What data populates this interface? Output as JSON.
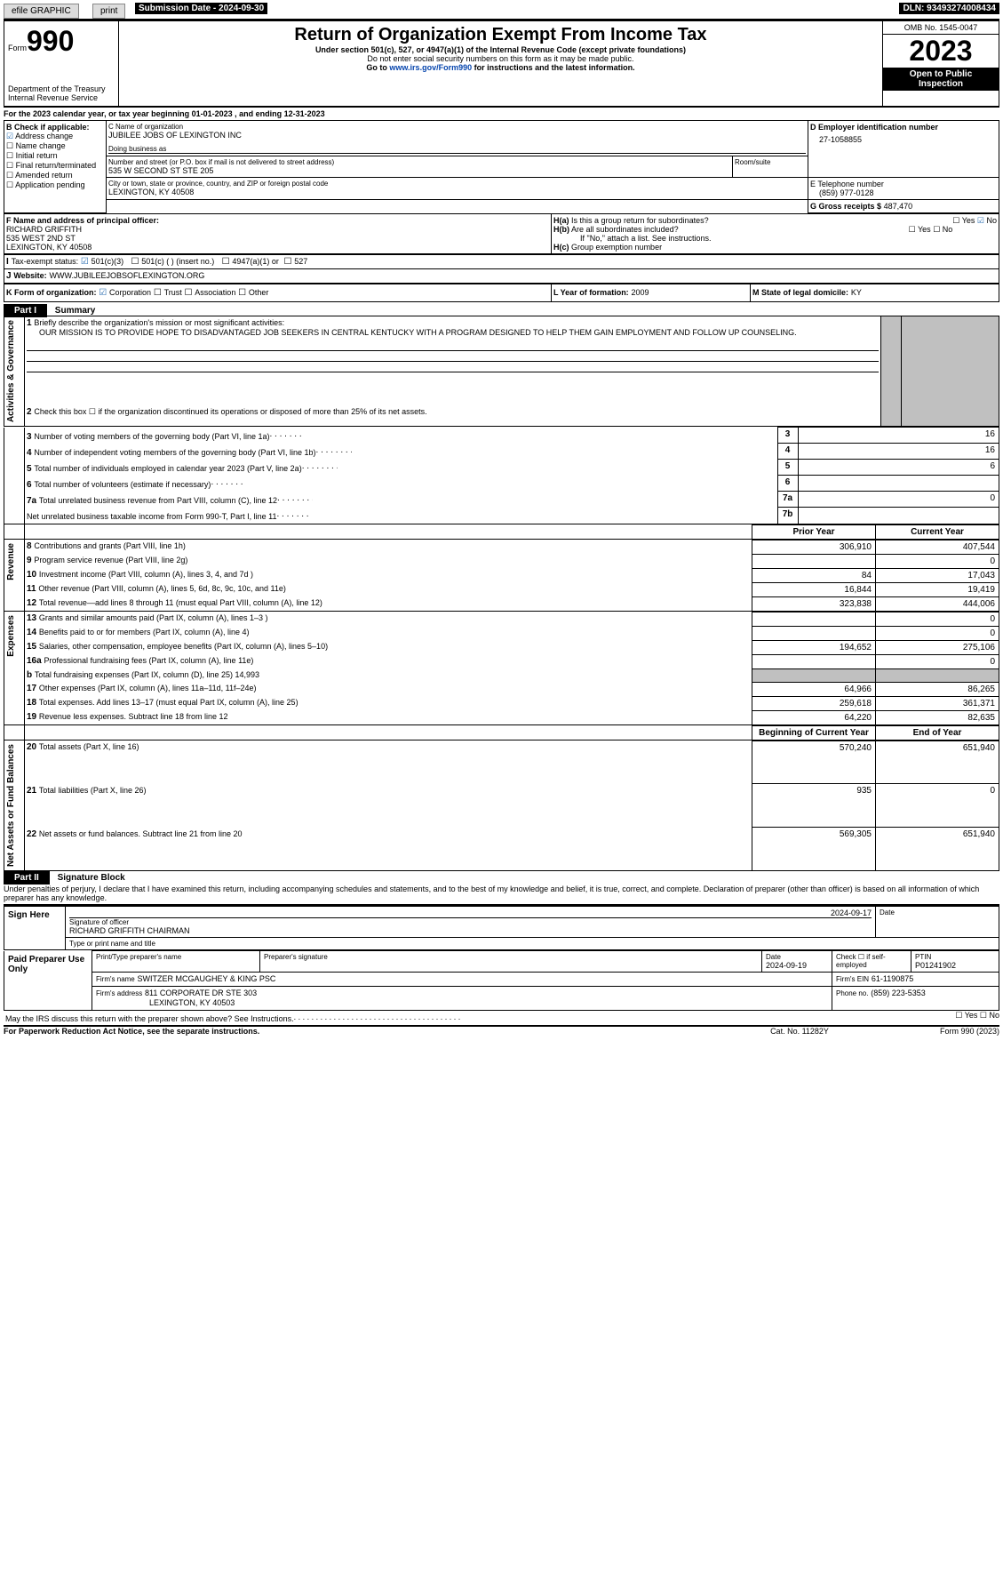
{
  "topbar": {
    "efile": "efile GRAPHIC",
    "print": "print",
    "submission": "Submission Date - 2024-09-30",
    "dln": "DLN: 93493274008434"
  },
  "header": {
    "form_small": "Form",
    "form_big": "990",
    "title": "Return of Organization Exempt From Income Tax",
    "subtitle": "Under section 501(c), 527, or 4947(a)(1) of the Internal Revenue Code (except private foundations)",
    "warn": "Do not enter social security numbers on this form as it may be made public.",
    "goto_pre": "Go to ",
    "goto_link": "www.irs.gov/Form990",
    "goto_post": " for instructions and the latest information.",
    "dept": "Department of the Treasury\nInternal Revenue Service",
    "omb": "OMB No. 1545-0047",
    "year": "2023",
    "open": "Open to Public Inspection"
  },
  "A": {
    "line": "For the 2023 calendar year, or tax year beginning 01-01-2023   , and ending 12-31-2023"
  },
  "B": {
    "label": "B Check if applicable:",
    "addr_change": "Address change",
    "name_change": "Name change",
    "initial": "Initial return",
    "final": "Final return/terminated",
    "amended": "Amended return",
    "app_pending": "Application pending"
  },
  "C": {
    "name_lbl": "C Name of organization",
    "name": "JUBILEE JOBS OF LEXINGTON INC",
    "dba_lbl": "Doing business as",
    "street_lbl": "Number and street (or P.O. box if mail is not delivered to street address)",
    "room_lbl": "Room/suite",
    "street": "535 W SECOND ST STE 205",
    "city_lbl": "City or town, state or province, country, and ZIP or foreign postal code",
    "city": "LEXINGTON, KY  40508"
  },
  "D": {
    "lbl": "D Employer identification number",
    "val": "27-1058855"
  },
  "E": {
    "lbl": "E Telephone number",
    "val": "(859) 977-0128"
  },
  "G": {
    "lbl": "G Gross receipts $",
    "val": "487,470"
  },
  "F": {
    "lbl": "F  Name and address of principal officer:",
    "name": "RICHARD GRIFFITH",
    "street": "535 WEST 2ND ST",
    "city": "LEXINGTON, KY  40508"
  },
  "H": {
    "a": "Is this a group return for subordinates?",
    "b": "Are all subordinates included?",
    "b_note": "If \"No,\" attach a list. See instructions.",
    "c": "Group exemption number",
    "yes": "Yes",
    "no": "No"
  },
  "I": {
    "lbl": "Tax-exempt status:",
    "c3": "501(c)(3)",
    "c_other": "501(c) (  ) (insert no.)",
    "a1": "4947(a)(1) or",
    "s527": "527"
  },
  "J": {
    "lbl": "Website:",
    "val": "WWW.JUBILEEJOBSOFLEXINGTON.ORG"
  },
  "K": {
    "lbl": "K Form of organization:",
    "corp": "Corporation",
    "trust": "Trust",
    "assoc": "Association",
    "other": "Other"
  },
  "L": {
    "lbl": "L Year of formation:",
    "val": "2009"
  },
  "M": {
    "lbl": "M State of legal domicile:",
    "val": "KY"
  },
  "part1": {
    "title": "Part I",
    "sub": "Summary",
    "l1": "Briefly describe the organization's mission or most significant activities:",
    "mission": "OUR MISSION IS TO PROVIDE HOPE TO DISADVANTAGED JOB SEEKERS IN CENTRAL KENTUCKY WITH A PROGRAM DESIGNED TO HELP THEM GAIN EMPLOYMENT AND FOLLOW UP COUNSELING.",
    "l2": "Check this box  ☐  if the organization discontinued its operations or disposed of more than 25% of its net assets.",
    "rows_ag": [
      {
        "n": "3",
        "t": "Number of voting members of the governing body (Part VI, line 1a)",
        "k": "3",
        "v": "16"
      },
      {
        "n": "4",
        "t": "Number of independent voting members of the governing body (Part VI, line 1b)",
        "k": "4",
        "v": "16"
      },
      {
        "n": "5",
        "t": "Total number of individuals employed in calendar year 2023 (Part V, line 2a)",
        "k": "5",
        "v": "6"
      },
      {
        "n": "6",
        "t": "Total number of volunteers (estimate if necessary)",
        "k": "6",
        "v": ""
      },
      {
        "n": "7a",
        "t": "Total unrelated business revenue from Part VIII, column (C), line 12",
        "k": "7a",
        "v": "0"
      },
      {
        "n": "",
        "t": "Net unrelated business taxable income from Form 990-T, Part I, line 11",
        "k": "7b",
        "v": ""
      }
    ],
    "head_prev": "Prior Year",
    "head_curr": "Current Year",
    "revenue": [
      {
        "n": "8",
        "t": "Contributions and grants (Part VIII, line 1h)",
        "p": "306,910",
        "c": "407,544"
      },
      {
        "n": "9",
        "t": "Program service revenue (Part VIII, line 2g)",
        "p": "",
        "c": "0"
      },
      {
        "n": "10",
        "t": "Investment income (Part VIII, column (A), lines 3, 4, and 7d )",
        "p": "84",
        "c": "17,043"
      },
      {
        "n": "11",
        "t": "Other revenue (Part VIII, column (A), lines 5, 6d, 8c, 9c, 10c, and 11e)",
        "p": "16,844",
        "c": "19,419"
      },
      {
        "n": "12",
        "t": "Total revenue—add lines 8 through 11 (must equal Part VIII, column (A), line 12)",
        "p": "323,838",
        "c": "444,006"
      }
    ],
    "expenses": [
      {
        "n": "13",
        "t": "Grants and similar amounts paid (Part IX, column (A), lines 1–3 )",
        "p": "",
        "c": "0"
      },
      {
        "n": "14",
        "t": "Benefits paid to or for members (Part IX, column (A), line 4)",
        "p": "",
        "c": "0"
      },
      {
        "n": "15",
        "t": "Salaries, other compensation, employee benefits (Part IX, column (A), lines 5–10)",
        "p": "194,652",
        "c": "275,106"
      },
      {
        "n": "16a",
        "t": "Professional fundraising fees (Part IX, column (A), line 11e)",
        "p": "",
        "c": "0"
      },
      {
        "n": "b",
        "t": "Total fundraising expenses (Part IX, column (D), line 25) 14,993",
        "p": "GRAY",
        "c": "GRAY"
      },
      {
        "n": "17",
        "t": "Other expenses (Part IX, column (A), lines 11a–11d, 11f–24e)",
        "p": "64,966",
        "c": "86,265"
      },
      {
        "n": "18",
        "t": "Total expenses. Add lines 13–17 (must equal Part IX, column (A), line 25)",
        "p": "259,618",
        "c": "361,371"
      },
      {
        "n": "19",
        "t": "Revenue less expenses. Subtract line 18 from line 12",
        "p": "64,220",
        "c": "82,635"
      }
    ],
    "head_beg": "Beginning of Current Year",
    "head_end": "End of Year",
    "netassets": [
      {
        "n": "20",
        "t": "Total assets (Part X, line 16)",
        "p": "570,240",
        "c": "651,940"
      },
      {
        "n": "21",
        "t": "Total liabilities (Part X, line 26)",
        "p": "935",
        "c": "0"
      },
      {
        "n": "22",
        "t": "Net assets or fund balances. Subtract line 21 from line 20",
        "p": "569,305",
        "c": "651,940"
      }
    ],
    "side_ag": "Activities & Governance",
    "side_rev": "Revenue",
    "side_exp": "Expenses",
    "side_na": "Net Assets or Fund Balances"
  },
  "part2": {
    "title": "Part II",
    "sub": "Signature Block",
    "decl": "Under penalties of perjury, I declare that I have examined this return, including accompanying schedules and statements, and to the best of my knowledge and belief, it is true, correct, and complete. Declaration of preparer (other than officer) is based on all information of which preparer has any knowledge.",
    "sign_here": "Sign Here",
    "paid": "Paid Preparer Use Only",
    "sig_officer_lbl": "Signature of officer",
    "sig_officer": "RICHARD GRIFFITH  CHAIRMAN",
    "type_title": "Type or print name and title",
    "date1": "2024-09-17",
    "date_lbl": "Date",
    "prep_name_lbl": "Print/Type preparer's name",
    "prep_sig_lbl": "Preparer's signature",
    "date2": "2024-09-19",
    "check_self": "Check ☐ if self-employed",
    "ptin_lbl": "PTIN",
    "ptin": "P01241902",
    "firm_name_lbl": "Firm's name",
    "firm_name": "SWITZER MCGAUGHEY & KING PSC",
    "firm_ein_lbl": "Firm's EIN",
    "firm_ein": "61-1190875",
    "firm_addr_lbl": "Firm's address",
    "firm_addr1": "811 CORPORATE DR STE 303",
    "firm_addr2": "LEXINGTON, KY  40503",
    "phone_lbl": "Phone no.",
    "phone": "(859) 223-5353",
    "discuss": "May the IRS discuss this return with the preparer shown above? See Instructions.",
    "foot_left": "For Paperwork Reduction Act Notice, see the separate instructions.",
    "foot_mid": "Cat. No. 11282Y",
    "foot_right": "Form 990 (2023)"
  }
}
